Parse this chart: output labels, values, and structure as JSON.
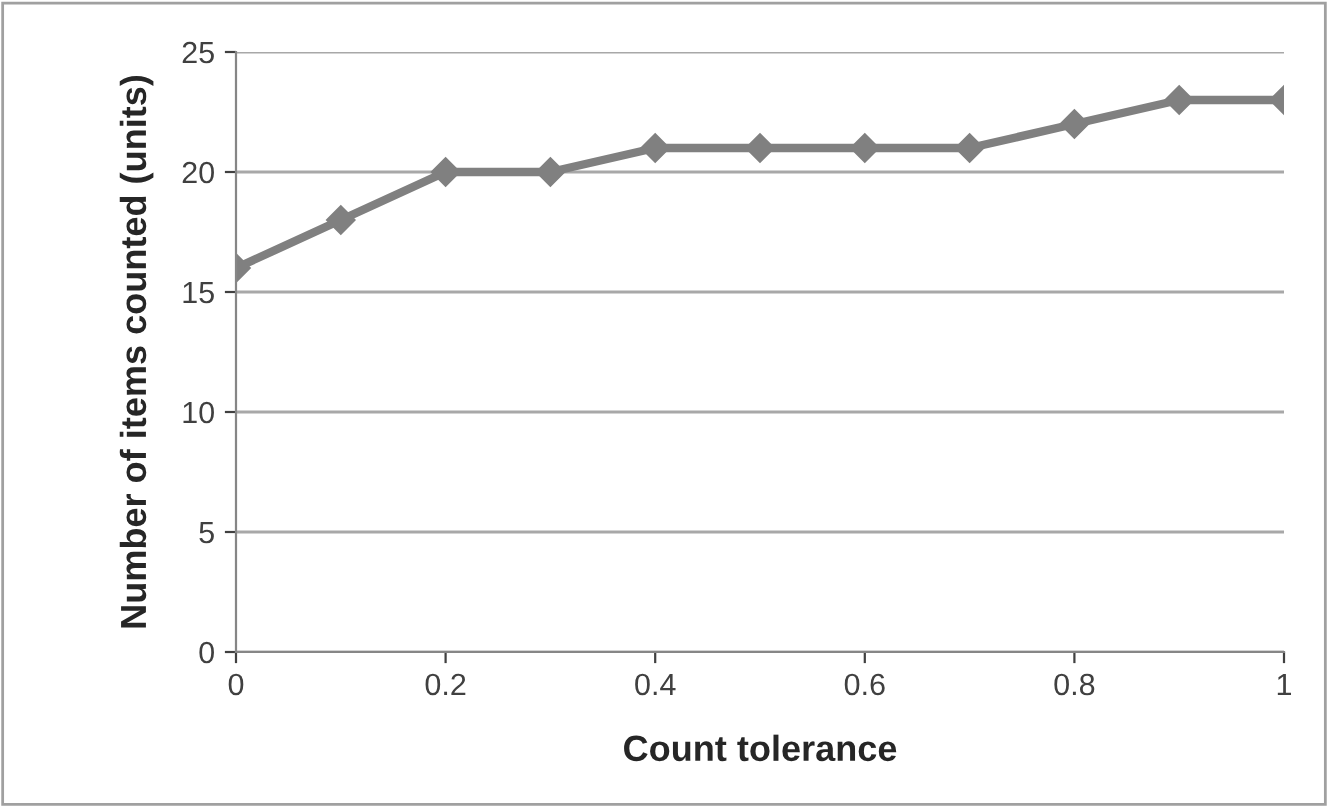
{
  "chart_data": {
    "type": "line",
    "xlabel": "Count tolerance",
    "ylabel": "Number of items counted (units)",
    "x": [
      0,
      0.1,
      0.2,
      0.3,
      0.4,
      0.5,
      0.6,
      0.7,
      0.8,
      0.9,
      1
    ],
    "series": [
      {
        "color": "#808080",
        "values": [
          16,
          18,
          20,
          20,
          21,
          21,
          21,
          21,
          22,
          23,
          23
        ]
      }
    ],
    "xlim": [
      0,
      1
    ],
    "xticks": [
      0,
      0.2,
      0.4,
      0.6,
      0.8,
      1
    ],
    "ylim": [
      0,
      25
    ],
    "yticks": [
      0,
      5,
      10,
      15,
      20,
      25
    ],
    "grid": "y",
    "marker": "diamond",
    "line_style": "solid"
  }
}
